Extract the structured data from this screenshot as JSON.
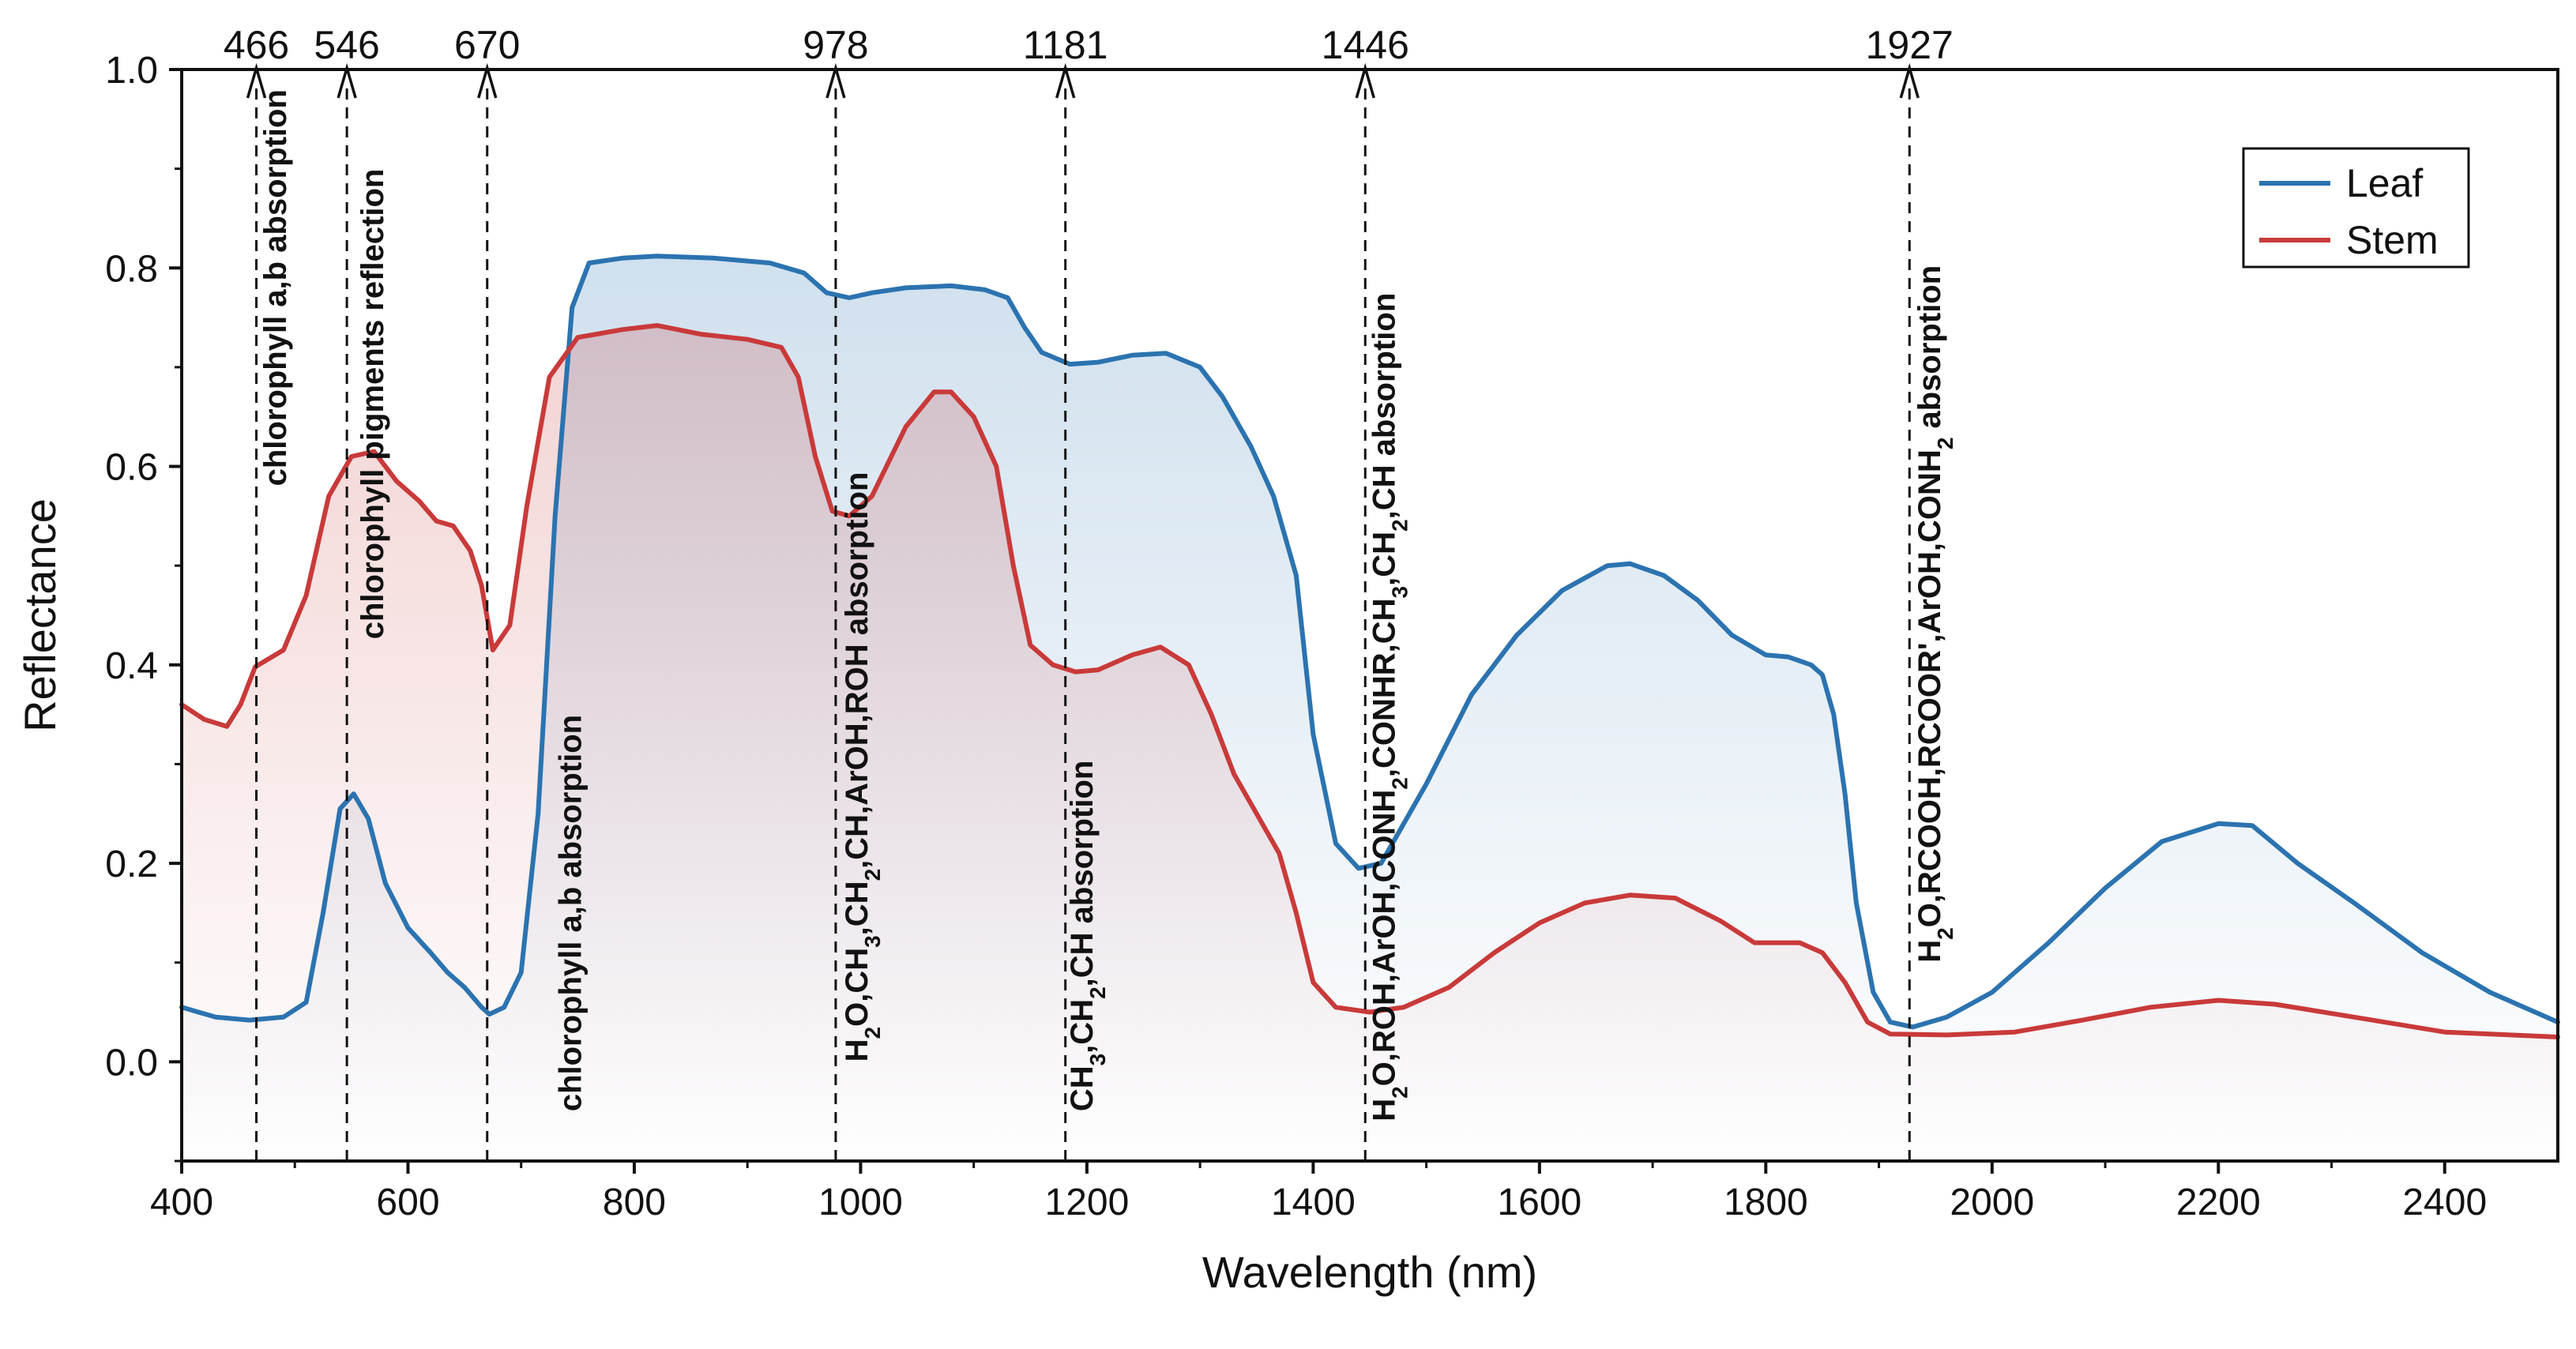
{
  "chart_data": {
    "type": "line",
    "title": "",
    "xlabel": "Wavelength (nm)",
    "ylabel": "Reflectance",
    "xlim": [
      400,
      2500
    ],
    "ylim": [
      -0.1,
      1.0
    ],
    "grid": false,
    "legend_position": "top-right",
    "x_ticks": [
      "400",
      "600",
      "800",
      "1000",
      "1200",
      "1400",
      "1600",
      "1800",
      "2000",
      "2200",
      "2400"
    ],
    "x_tick_values": [
      400,
      600,
      800,
      1000,
      1200,
      1400,
      1600,
      1800,
      2000,
      2200,
      2400
    ],
    "y_ticks": [
      "0.0",
      "0.2",
      "0.4",
      "0.6",
      "0.8",
      "1.0"
    ],
    "y_tick_values": [
      0.0,
      0.2,
      0.4,
      0.6,
      0.8,
      1.0
    ],
    "series": [
      {
        "name": "Leaf",
        "color": "#2b73b0",
        "fill_color": "#2b73b0",
        "points": [
          [
            400,
            0.055
          ],
          [
            430,
            0.045
          ],
          [
            460,
            0.042
          ],
          [
            490,
            0.045
          ],
          [
            510,
            0.06
          ],
          [
            525,
            0.15
          ],
          [
            540,
            0.255
          ],
          [
            552,
            0.27
          ],
          [
            565,
            0.245
          ],
          [
            580,
            0.18
          ],
          [
            600,
            0.135
          ],
          [
            620,
            0.11
          ],
          [
            635,
            0.09
          ],
          [
            650,
            0.075
          ],
          [
            665,
            0.055
          ],
          [
            672,
            0.048
          ],
          [
            685,
            0.055
          ],
          [
            700,
            0.09
          ],
          [
            715,
            0.25
          ],
          [
            730,
            0.55
          ],
          [
            745,
            0.76
          ],
          [
            760,
            0.805
          ],
          [
            790,
            0.81
          ],
          [
            820,
            0.812
          ],
          [
            870,
            0.81
          ],
          [
            920,
            0.805
          ],
          [
            950,
            0.795
          ],
          [
            970,
            0.775
          ],
          [
            990,
            0.77
          ],
          [
            1010,
            0.775
          ],
          [
            1040,
            0.78
          ],
          [
            1080,
            0.782
          ],
          [
            1110,
            0.778
          ],
          [
            1130,
            0.77
          ],
          [
            1145,
            0.74
          ],
          [
            1160,
            0.715
          ],
          [
            1185,
            0.703
          ],
          [
            1210,
            0.705
          ],
          [
            1240,
            0.712
          ],
          [
            1270,
            0.714
          ],
          [
            1300,
            0.7
          ],
          [
            1320,
            0.67
          ],
          [
            1345,
            0.62
          ],
          [
            1365,
            0.57
          ],
          [
            1385,
            0.49
          ],
          [
            1400,
            0.33
          ],
          [
            1420,
            0.22
          ],
          [
            1440,
            0.195
          ],
          [
            1460,
            0.2
          ],
          [
            1480,
            0.24
          ],
          [
            1500,
            0.28
          ],
          [
            1540,
            0.37
          ],
          [
            1580,
            0.43
          ],
          [
            1620,
            0.475
          ],
          [
            1660,
            0.5
          ],
          [
            1680,
            0.502
          ],
          [
            1710,
            0.49
          ],
          [
            1740,
            0.465
          ],
          [
            1770,
            0.43
          ],
          [
            1800,
            0.41
          ],
          [
            1820,
            0.408
          ],
          [
            1840,
            0.4
          ],
          [
            1850,
            0.39
          ],
          [
            1860,
            0.35
          ],
          [
            1870,
            0.27
          ],
          [
            1880,
            0.16
          ],
          [
            1895,
            0.07
          ],
          [
            1910,
            0.04
          ],
          [
            1930,
            0.035
          ],
          [
            1960,
            0.045
          ],
          [
            2000,
            0.07
          ],
          [
            2050,
            0.12
          ],
          [
            2100,
            0.175
          ],
          [
            2150,
            0.222
          ],
          [
            2200,
            0.24
          ],
          [
            2230,
            0.238
          ],
          [
            2270,
            0.2
          ],
          [
            2320,
            0.16
          ],
          [
            2380,
            0.11
          ],
          [
            2440,
            0.07
          ],
          [
            2500,
            0.04
          ]
        ]
      },
      {
        "name": "Stem",
        "color": "#c93a3a",
        "fill_color": "#c93a3a",
        "points": [
          [
            400,
            0.36
          ],
          [
            420,
            0.345
          ],
          [
            440,
            0.338
          ],
          [
            452,
            0.36
          ],
          [
            465,
            0.398
          ],
          [
            490,
            0.415
          ],
          [
            510,
            0.47
          ],
          [
            530,
            0.57
          ],
          [
            550,
            0.61
          ],
          [
            570,
            0.615
          ],
          [
            590,
            0.585
          ],
          [
            610,
            0.565
          ],
          [
            625,
            0.545
          ],
          [
            640,
            0.54
          ],
          [
            655,
            0.515
          ],
          [
            665,
            0.48
          ],
          [
            675,
            0.415
          ],
          [
            690,
            0.44
          ],
          [
            705,
            0.56
          ],
          [
            725,
            0.69
          ],
          [
            750,
            0.73
          ],
          [
            790,
            0.738
          ],
          [
            820,
            0.742
          ],
          [
            860,
            0.733
          ],
          [
            900,
            0.728
          ],
          [
            930,
            0.72
          ],
          [
            945,
            0.69
          ],
          [
            960,
            0.61
          ],
          [
            975,
            0.555
          ],
          [
            990,
            0.55
          ],
          [
            1010,
            0.57
          ],
          [
            1040,
            0.64
          ],
          [
            1065,
            0.675
          ],
          [
            1080,
            0.675
          ],
          [
            1100,
            0.65
          ],
          [
            1120,
            0.6
          ],
          [
            1135,
            0.5
          ],
          [
            1150,
            0.42
          ],
          [
            1170,
            0.4
          ],
          [
            1190,
            0.393
          ],
          [
            1210,
            0.395
          ],
          [
            1240,
            0.41
          ],
          [
            1265,
            0.418
          ],
          [
            1290,
            0.4
          ],
          [
            1310,
            0.35
          ],
          [
            1330,
            0.29
          ],
          [
            1350,
            0.25
          ],
          [
            1370,
            0.21
          ],
          [
            1385,
            0.15
          ],
          [
            1400,
            0.08
          ],
          [
            1420,
            0.055
          ],
          [
            1450,
            0.05
          ],
          [
            1480,
            0.055
          ],
          [
            1520,
            0.075
          ],
          [
            1560,
            0.11
          ],
          [
            1600,
            0.14
          ],
          [
            1640,
            0.16
          ],
          [
            1680,
            0.168
          ],
          [
            1720,
            0.165
          ],
          [
            1760,
            0.142
          ],
          [
            1790,
            0.12
          ],
          [
            1830,
            0.12
          ],
          [
            1850,
            0.11
          ],
          [
            1870,
            0.08
          ],
          [
            1890,
            0.04
          ],
          [
            1910,
            0.028
          ],
          [
            1960,
            0.027
          ],
          [
            2020,
            0.03
          ],
          [
            2080,
            0.042
          ],
          [
            2140,
            0.055
          ],
          [
            2200,
            0.062
          ],
          [
            2250,
            0.058
          ],
          [
            2320,
            0.045
          ],
          [
            2400,
            0.03
          ],
          [
            2500,
            0.025
          ]
        ]
      }
    ],
    "markers": [
      {
        "wavelength": 466,
        "label": "466"
      },
      {
        "wavelength": 546,
        "label": "546"
      },
      {
        "wavelength": 670,
        "label": "670"
      },
      {
        "wavelength": 978,
        "label": "978"
      },
      {
        "wavelength": 1181,
        "label": "1181"
      },
      {
        "wavelength": 1446,
        "label": "1446"
      },
      {
        "wavelength": 1927,
        "label": "1927"
      }
    ],
    "annotations": [
      {
        "text": "chlorophyll a,b absorption",
        "segments": [
          [
            "chlorophyll a,b absorption",
            ""
          ]
        ],
        "x": 492,
        "y_top": 0.98,
        "align": "top"
      },
      {
        "text": "chlorophyll pigments reflection",
        "segments": [
          [
            "chlorophyll pigments reflection",
            ""
          ]
        ],
        "x": 578,
        "y_top": 0.9,
        "align": "top"
      },
      {
        "text": "chlorophyll a,b absorption",
        "segments": [
          [
            "chlorophyll a,b absorption",
            ""
          ]
        ],
        "x": 753,
        "y_bottom": -0.05,
        "align": "bottom"
      },
      {
        "text": "H2O,CH3,CH2,CH,ArOH,ROH absorption",
        "segments": [
          [
            "H",
            ""
          ],
          [
            "2",
            "sub"
          ],
          [
            "O,CH",
            ""
          ],
          [
            "3",
            "sub"
          ],
          [
            ",CH",
            ""
          ],
          [
            "2",
            "sub"
          ],
          [
            ",CH,ArOH,ROH absorption",
            ""
          ]
        ],
        "x": 1006,
        "y_bottom": 0.0,
        "align": "bottom"
      },
      {
        "text": "CH3,CH2,CH absorption",
        "segments": [
          [
            "CH",
            ""
          ],
          [
            "3",
            "sub"
          ],
          [
            ",CH",
            ""
          ],
          [
            "2",
            "sub"
          ],
          [
            ",CH absorption",
            ""
          ]
        ],
        "x": 1205,
        "y_bottom": -0.05,
        "align": "bottom"
      },
      {
        "text": "H2O,ROH,ArOH,CONH2,CONHR,CH3,CH2,CH absorption",
        "segments": [
          [
            "H",
            ""
          ],
          [
            "2",
            "sub"
          ],
          [
            "O,ROH,ArOH,CONH",
            ""
          ],
          [
            "2",
            "sub"
          ],
          [
            ",CONHR,CH",
            ""
          ],
          [
            "3",
            "sub"
          ],
          [
            ",CH",
            ""
          ],
          [
            "2",
            "sub"
          ],
          [
            ",CH absorption",
            ""
          ]
        ],
        "x": 1472,
        "y_bottom": -0.06,
        "align": "bottom"
      },
      {
        "text": "H2O,RCOOH,RCOOR',ArOH,CONH2 absorption",
        "segments": [
          [
            "H",
            ""
          ],
          [
            "2",
            "sub"
          ],
          [
            "O,RCOOH,RCOOR',ArOH,CONH",
            ""
          ],
          [
            "2",
            "sub"
          ],
          [
            " absorption",
            ""
          ]
        ],
        "x": 1954,
        "y_bottom": 0.1,
        "align": "bottom"
      }
    ]
  }
}
